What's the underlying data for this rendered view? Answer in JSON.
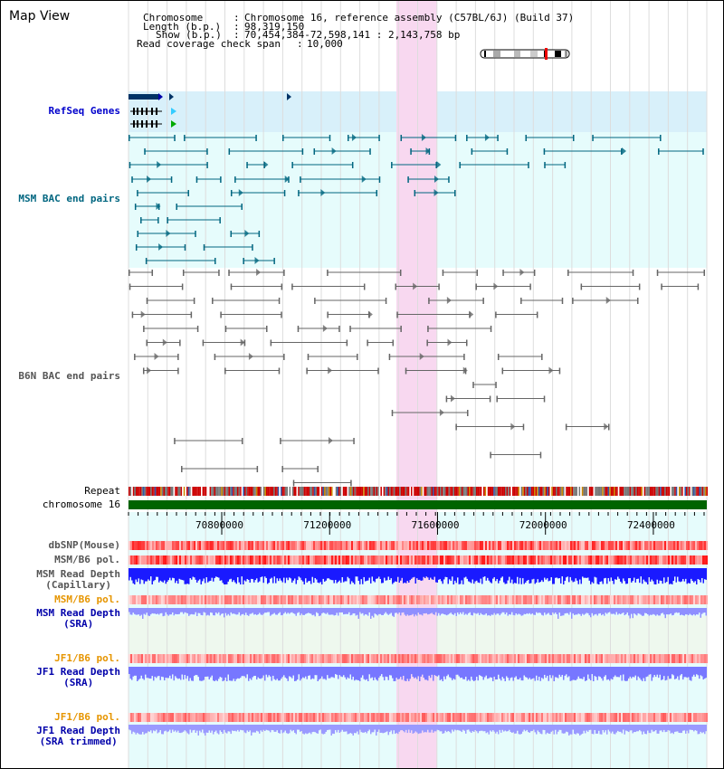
{
  "app": {
    "title": "Map View"
  },
  "info": {
    "chromosome_key": "Chromosome",
    "chromosome_val": "Chromosome 16, reference assembly (C57BL/6J) (Build 37)",
    "length_key": "Length (b.p.)",
    "length_val": "98,319,150",
    "show_key": "Show (b.p.)",
    "show_val": "70,454,384-72,598,141 : 2,143,758 bp",
    "coverage_key": "Read coverage check span",
    "coverage_val": "10,000"
  },
  "view": {
    "start": 70454384,
    "end": 72598141,
    "highlight": [
      71450000,
      71600000
    ]
  },
  "axis": {
    "ticks": [
      {
        "pos": 70800000,
        "label": "70800000"
      },
      {
        "pos": 71200000,
        "label": "71200000"
      },
      {
        "pos": 71600000,
        "label": "71600000"
      },
      {
        "pos": 72000000,
        "label": "72000000"
      },
      {
        "pos": 72400000,
        "label": "72400000"
      }
    ]
  },
  "tracks": {
    "refseq": {
      "label": "RefSeq Genes",
      "color": "#0000cc"
    },
    "msm_bac": {
      "label": "MSM BAC end pairs",
      "color": "#006680"
    },
    "b6n_bac": {
      "label": "B6N BAC end pairs",
      "color": "#555555"
    },
    "repeat": {
      "label": "Repeat"
    },
    "chromosome": {
      "label": "chromosome 16"
    },
    "dbsnp": {
      "label": "dbSNP(Mouse)"
    },
    "msm_b6_pol": {
      "label": "MSM/B6 pol."
    },
    "msm_depth_cap": {
      "label_line1": "MSM Read Depth",
      "label_line2": "(Capillary)"
    },
    "msm_b6_pol_sra": {
      "label": "MSM/B6 pol.",
      "color": "#e69500"
    },
    "msm_depth_sra": {
      "label_line1": "MSM Read Depth",
      "label_line2": "(SRA)"
    },
    "jf1_b6_pol": {
      "label": "JF1/B6 pol.",
      "color": "#e69500"
    },
    "jf1_depth_sra": {
      "label_line1": "JF1 Read Depth",
      "label_line2": "(SRA)"
    },
    "jf1_b6_pol_trim": {
      "label": "JF1/B6 pol.",
      "color": "#e69500"
    },
    "jf1_depth_trim": {
      "label_line1": "JF1 Read Depth",
      "label_line2": "(SRA trimmed)"
    }
  },
  "colors": {
    "highlight": "#f8d8f0",
    "refseq_bg": "#d8f0fa",
    "bac_bg": "#e6fcfc",
    "depth_blue": "#1a1aff",
    "depth_light": "#8f8fff",
    "chrom_green": "#006400"
  }
}
